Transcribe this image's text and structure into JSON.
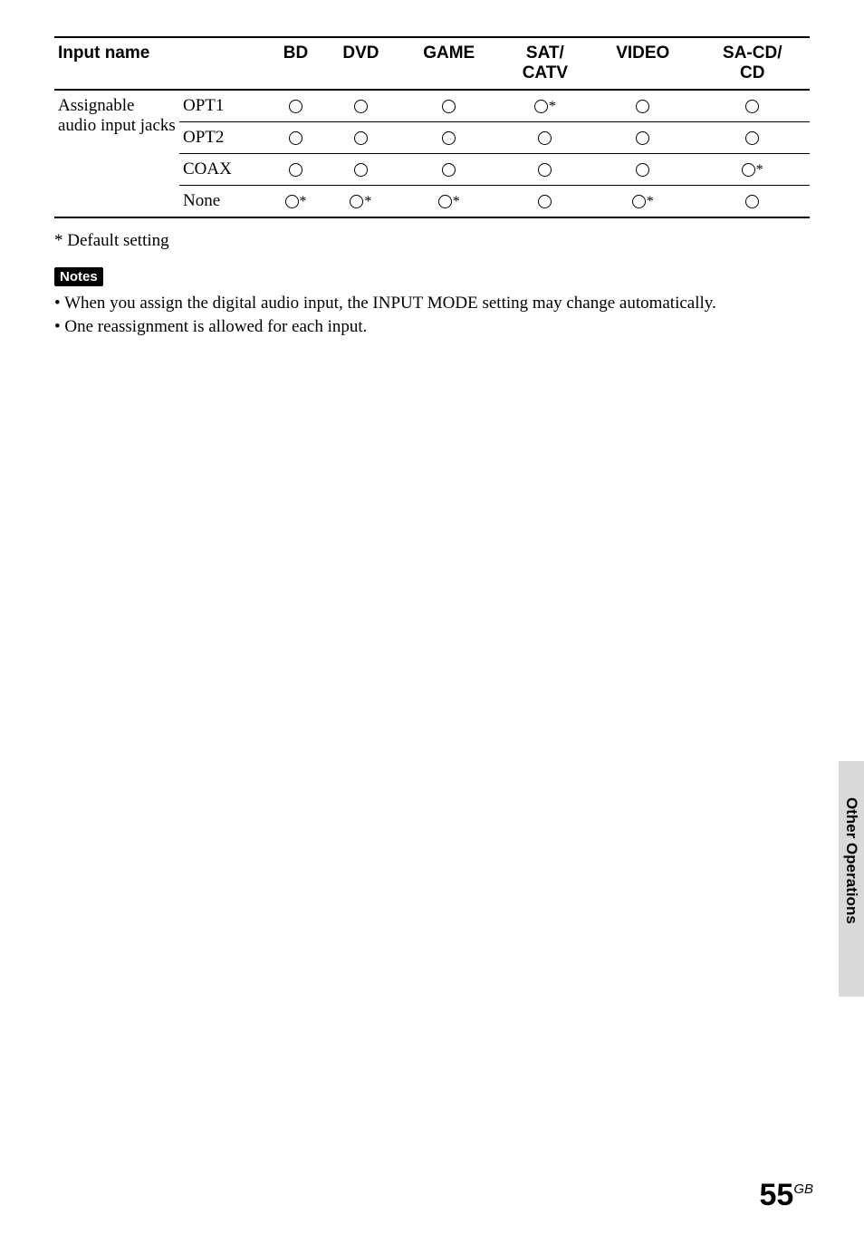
{
  "table": {
    "headers": {
      "input_name": "Input name",
      "bd": "BD",
      "dvd": "DVD",
      "game": "GAME",
      "sat_catv": "SAT/\nCATV",
      "video": "VIDEO",
      "sacd_cd": "SA-CD/\nCD"
    },
    "rowgroup_label": "Assignable audio input jacks",
    "rows": [
      {
        "label": "OPT1",
        "cells": [
          "o",
          "o",
          "o",
          "o*",
          "o",
          "o"
        ]
      },
      {
        "label": "OPT2",
        "cells": [
          "o",
          "o",
          "o",
          "o",
          "o",
          "o"
        ]
      },
      {
        "label": "COAX",
        "cells": [
          "o",
          "o",
          "o",
          "o",
          "o",
          "o*"
        ]
      },
      {
        "label": "None",
        "cells": [
          "o*",
          "o*",
          "o*",
          "o",
          "o*",
          "o"
        ]
      }
    ]
  },
  "footnote": "* Default setting",
  "notes_label": "Notes",
  "notes": [
    "When you assign the digital audio input, the INPUT MODE setting may change automatically.",
    "One reassignment is allowed for each input."
  ],
  "side_label": "Other Operations",
  "page_number": {
    "big": "55",
    "small": "GB"
  }
}
